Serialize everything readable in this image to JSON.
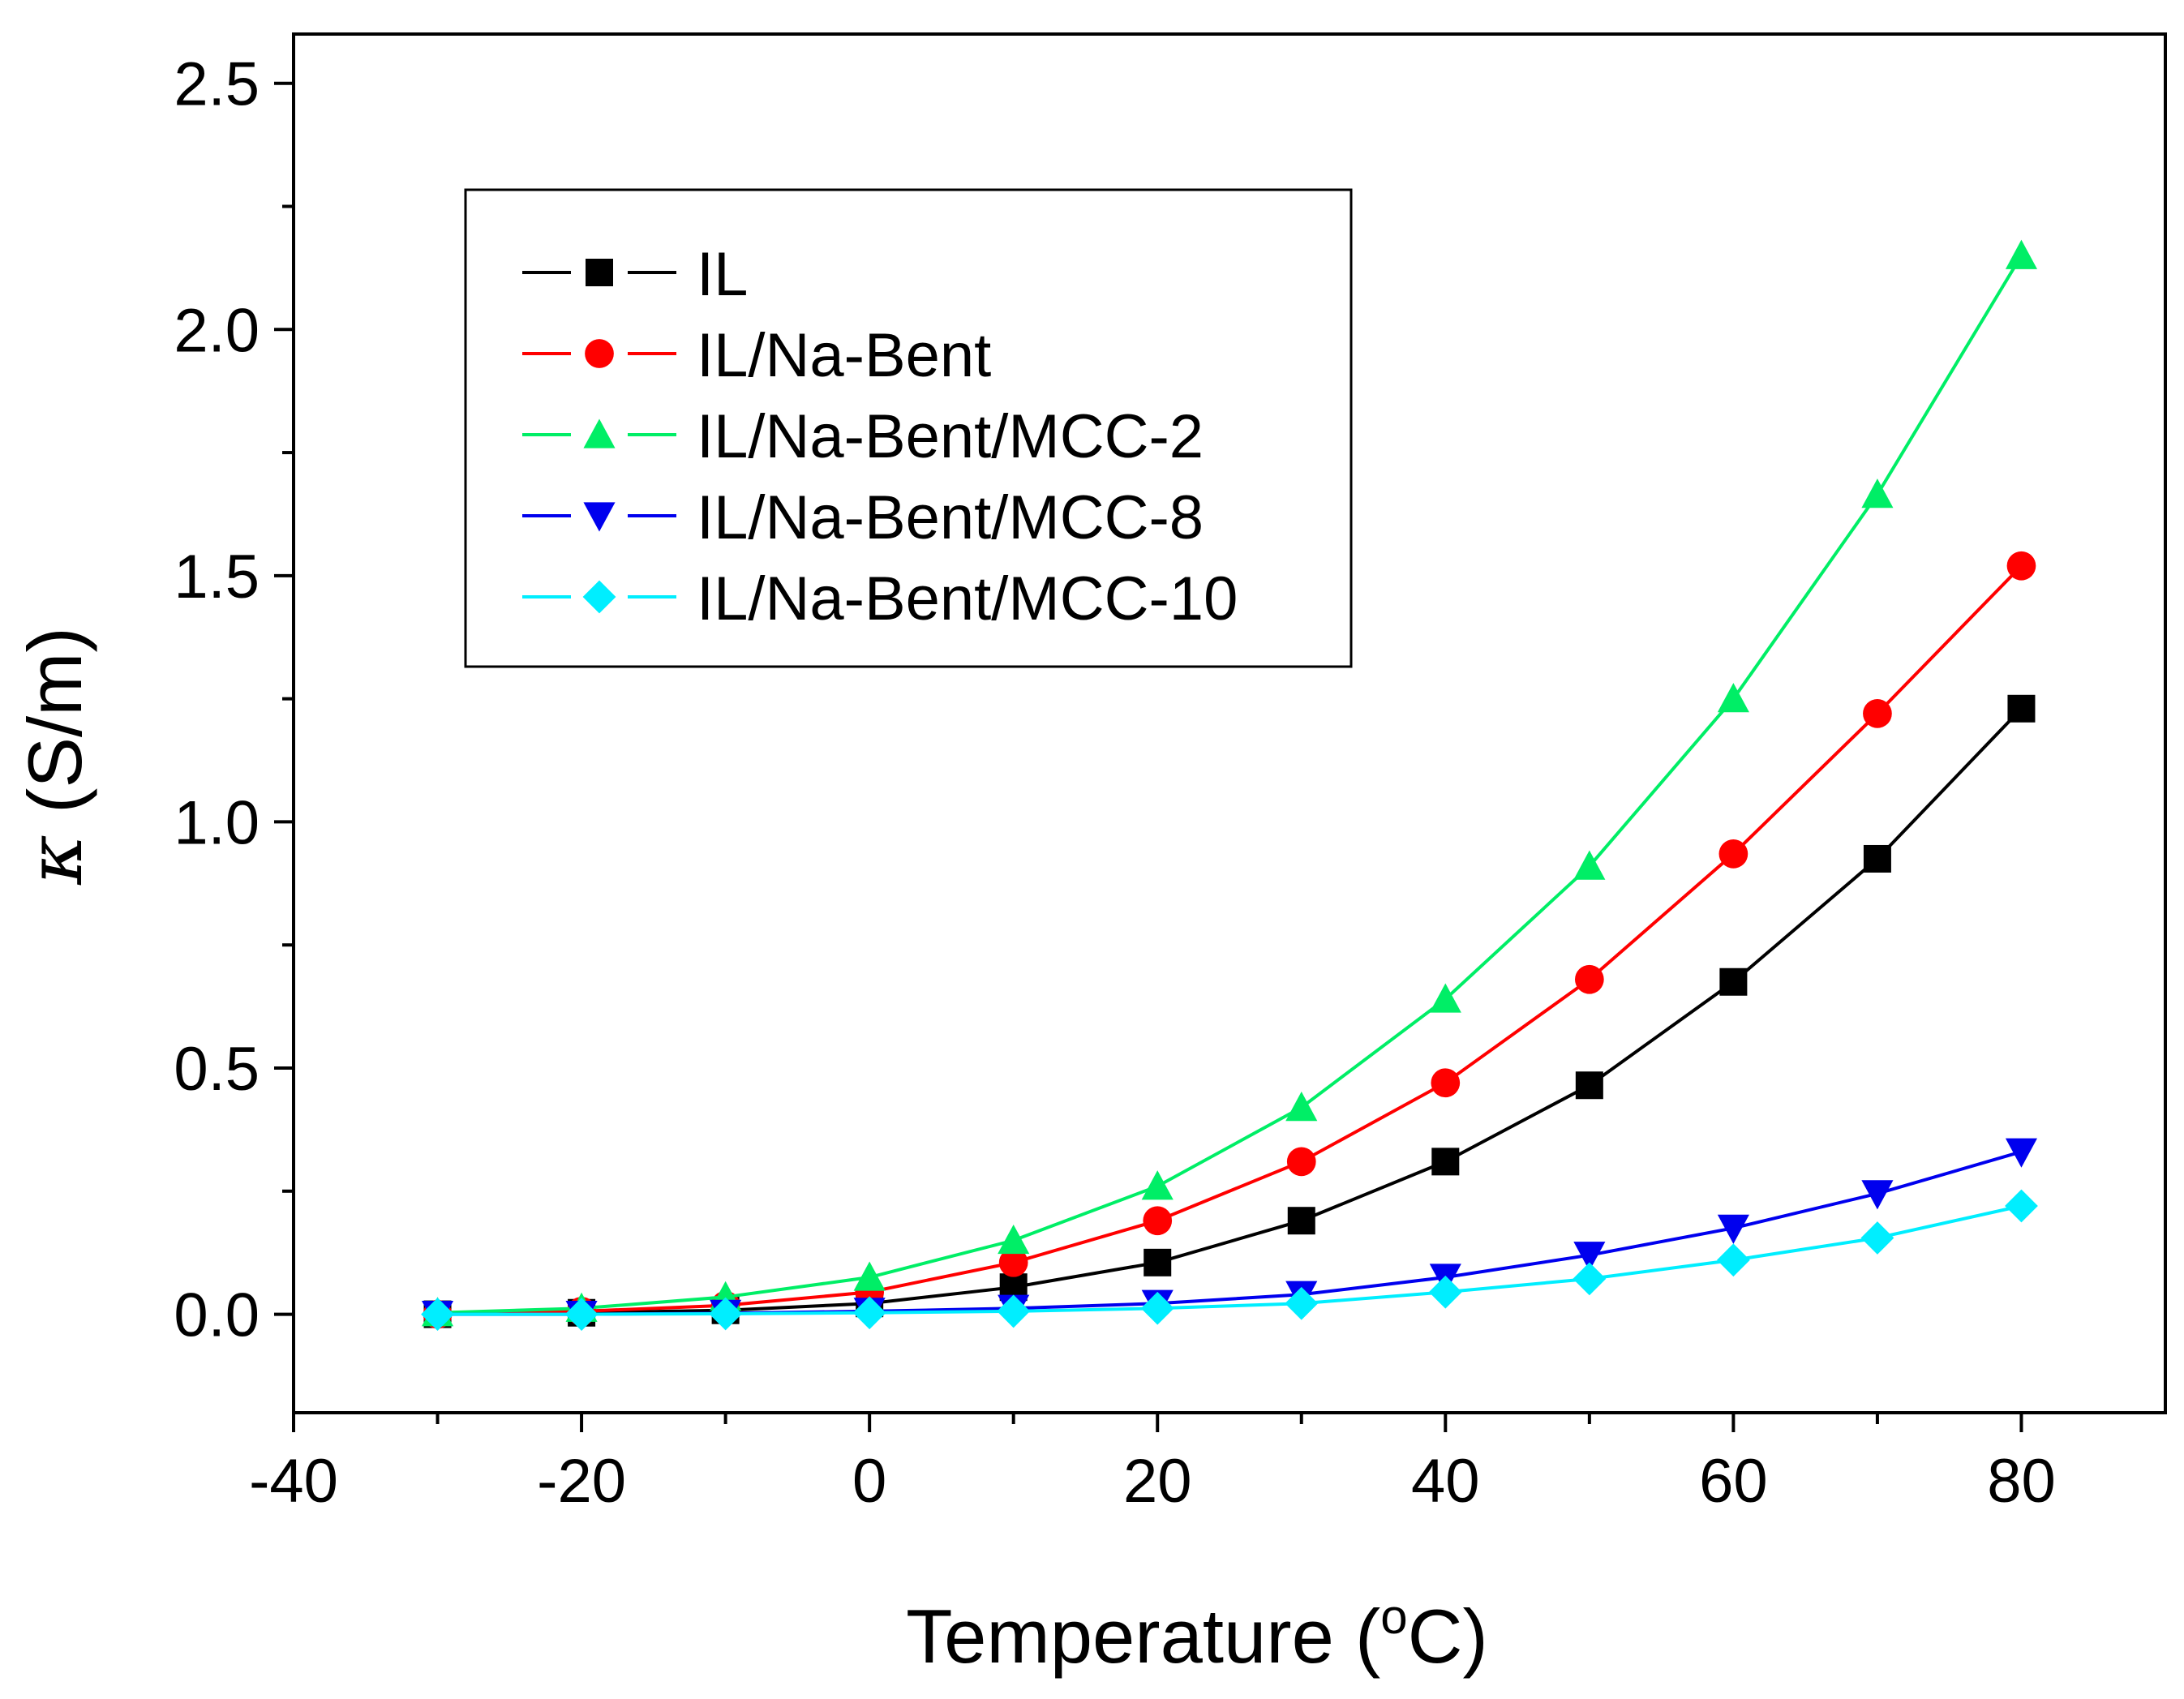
{
  "chart_data": {
    "type": "line",
    "title": "",
    "xlabel_main": "Temperature (",
    "xlabel_degree": "o",
    "xlabel_unit": "C)",
    "ylabel_symbol": "κ",
    "ylabel_unit": " (S/m)",
    "xlim": [
      -40,
      90
    ],
    "ylim": [
      -0.2,
      2.6
    ],
    "xticks": [
      -40,
      -20,
      0,
      20,
      40,
      60,
      80
    ],
    "xtick_labels": [
      "-40",
      "-20",
      "0",
      "20",
      "40",
      "60",
      "80"
    ],
    "yticks": [
      0.0,
      0.5,
      1.0,
      1.5,
      2.0,
      2.5
    ],
    "ytick_labels": [
      "0.0",
      "0.5",
      "1.0",
      "1.5",
      "2.0",
      "2.5"
    ],
    "grid": false,
    "legend_position": "upper-left",
    "x": [
      -30,
      -20,
      -10,
      0,
      10,
      20,
      30,
      40,
      50,
      60,
      70,
      80
    ],
    "series": [
      {
        "name": "IL",
        "color": "#000000",
        "marker": "square",
        "values": [
          0.0,
          0.003,
          0.008,
          0.022,
          0.055,
          0.105,
          0.19,
          0.31,
          0.465,
          0.675,
          0.925,
          1.23
        ]
      },
      {
        "name": "IL/Na-Bent",
        "color": "#ff0000",
        "marker": "circle",
        "values": [
          0.0,
          0.006,
          0.018,
          0.045,
          0.105,
          0.19,
          0.31,
          0.47,
          0.68,
          0.935,
          1.22,
          1.52
        ]
      },
      {
        "name": "IL/Na-Bent/MCC-2",
        "color": "#00ee66",
        "marker": "triangle-up",
        "values": [
          0.003,
          0.012,
          0.035,
          0.075,
          0.15,
          0.26,
          0.42,
          0.64,
          0.91,
          1.25,
          1.665,
          2.15
        ]
      },
      {
        "name": "IL/Na-Bent/MCC-8",
        "color": "#0000ee",
        "marker": "triangle-down",
        "values": [
          0.0,
          0.0,
          0.002,
          0.006,
          0.012,
          0.022,
          0.04,
          0.075,
          0.12,
          0.175,
          0.245,
          0.33
        ]
      },
      {
        "name": "IL/Na-Bent/MCC-10",
        "color": "#00eeff",
        "marker": "diamond",
        "values": [
          0.0,
          0.0,
          0.001,
          0.003,
          0.006,
          0.012,
          0.022,
          0.045,
          0.072,
          0.11,
          0.155,
          0.22
        ]
      }
    ]
  }
}
